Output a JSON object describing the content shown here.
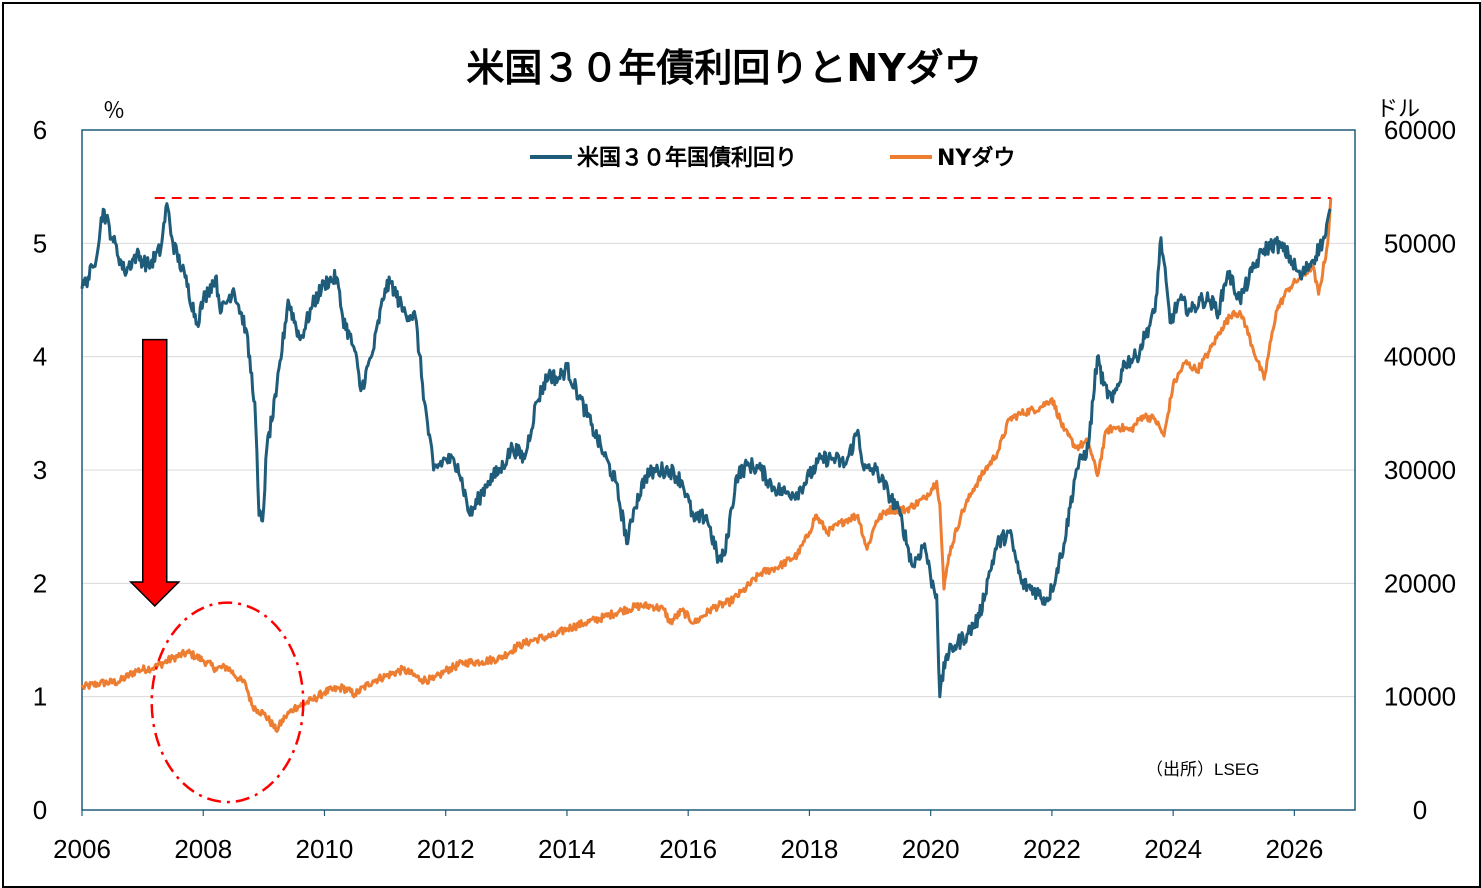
{
  "chart_data": {
    "type": "line",
    "title": "米国３０年債利回りとNYダウ",
    "y_left_unit": "％",
    "y_right_unit": "ドル",
    "source": "（出所）LSEG",
    "xlim": [
      2006,
      2027
    ],
    "x_ticks": [
      "2006",
      "2008",
      "2010",
      "2012",
      "2014",
      "2016",
      "2018",
      "2020",
      "2022",
      "2024",
      "2026"
    ],
    "y_left_lim": [
      0,
      6
    ],
    "y_left_ticks": [
      "0",
      "1",
      "2",
      "3",
      "4",
      "5",
      "6"
    ],
    "y_right_lim": [
      0,
      60000
    ],
    "y_right_ticks": [
      "0",
      "10000",
      "20000",
      "30000",
      "40000",
      "50000",
      "60000"
    ],
    "grid": true,
    "legend_position": "top-center",
    "colors": {
      "yield": "#1f5c7a",
      "dow": "#ed7d31",
      "reference_line": "#ff0000",
      "arrow": "#ff0000",
      "highlight_ellipse": "#ff0000"
    },
    "series": [
      {
        "name": "米国３０年国債利回り",
        "axis": "left",
        "x": [
          2006.0,
          2006.2,
          2006.35,
          2006.5,
          2006.7,
          2006.9,
          2007.1,
          2007.3,
          2007.4,
          2007.5,
          2007.7,
          2007.9,
          2008.0,
          2008.2,
          2008.3,
          2008.5,
          2008.7,
          2008.85,
          2008.92,
          2008.98,
          2009.05,
          2009.2,
          2009.4,
          2009.6,
          2009.8,
          2010.0,
          2010.2,
          2010.3,
          2010.5,
          2010.6,
          2010.8,
          2011.0,
          2011.1,
          2011.3,
          2011.5,
          2011.65,
          2011.8,
          2012.0,
          2012.2,
          2012.4,
          2012.55,
          2012.7,
          2012.9,
          2013.1,
          2013.3,
          2013.5,
          2013.7,
          2013.85,
          2014.0,
          2014.2,
          2014.4,
          2014.6,
          2014.8,
          2015.0,
          2015.1,
          2015.3,
          2015.5,
          2015.7,
          2015.9,
          2016.1,
          2016.3,
          2016.5,
          2016.6,
          2016.8,
          2017.0,
          2017.2,
          2017.4,
          2017.6,
          2017.8,
          2018.0,
          2018.2,
          2018.4,
          2018.6,
          2018.8,
          2018.9,
          2019.1,
          2019.3,
          2019.5,
          2019.7,
          2019.9,
          2020.0,
          2020.1,
          2020.15,
          2020.25,
          2020.4,
          2020.6,
          2020.8,
          2020.95,
          2021.1,
          2021.3,
          2021.5,
          2021.7,
          2021.9,
          2022.0,
          2022.2,
          2022.4,
          2022.6,
          2022.75,
          2022.85,
          2023.0,
          2023.2,
          2023.4,
          2023.55,
          2023.7,
          2023.8,
          2023.95,
          2024.1,
          2024.3,
          2024.45,
          2024.6,
          2024.75,
          2024.9,
          2025.1,
          2025.3,
          2025.5,
          2025.7,
          2025.9,
          2026.1,
          2026.3,
          2026.5,
          2026.6
        ],
        "values": [
          4.6,
          4.8,
          5.3,
          5.05,
          4.75,
          4.9,
          4.8,
          4.95,
          5.35,
          5.0,
          4.7,
          4.3,
          4.5,
          4.7,
          4.4,
          4.6,
          4.25,
          3.6,
          2.6,
          2.55,
          3.2,
          3.65,
          4.5,
          4.15,
          4.45,
          4.65,
          4.7,
          4.35,
          4.05,
          3.7,
          4.05,
          4.6,
          4.65,
          4.4,
          4.35,
          3.6,
          3.0,
          3.1,
          3.05,
          2.6,
          2.75,
          2.9,
          3.0,
          3.2,
          3.1,
          3.6,
          3.85,
          3.8,
          3.9,
          3.65,
          3.4,
          3.15,
          2.9,
          2.35,
          2.65,
          2.95,
          3.0,
          3.0,
          2.9,
          2.55,
          2.6,
          2.2,
          2.25,
          2.95,
          3.05,
          3.0,
          2.85,
          2.8,
          2.8,
          2.95,
          3.1,
          3.1,
          3.05,
          3.35,
          3.0,
          3.0,
          2.8,
          2.6,
          2.15,
          2.35,
          2.05,
          1.9,
          1.0,
          1.35,
          1.45,
          1.55,
          1.7,
          2.05,
          2.35,
          2.45,
          2.0,
          1.95,
          1.85,
          1.95,
          2.35,
          3.0,
          3.2,
          4.0,
          3.75,
          3.6,
          3.95,
          4.0,
          4.2,
          4.4,
          5.05,
          4.3,
          4.5,
          4.4,
          4.5,
          4.5,
          4.4,
          4.75,
          4.5,
          4.75,
          4.95,
          5.0,
          4.9,
          4.7,
          4.85,
          5.05,
          5.3
        ]
      },
      {
        "name": "NYダウ",
        "axis": "right",
        "x": [
          2006.0,
          2006.3,
          2006.6,
          2006.9,
          2007.2,
          2007.5,
          2007.75,
          2008.0,
          2008.2,
          2008.4,
          2008.6,
          2008.7,
          2008.8,
          2008.9,
          2009.0,
          2009.15,
          2009.2,
          2009.35,
          2009.5,
          2009.8,
          2010.0,
          2010.3,
          2010.5,
          2010.8,
          2011.0,
          2011.3,
          2011.6,
          2011.8,
          2012.0,
          2012.3,
          2012.6,
          2012.9,
          2013.2,
          2013.5,
          2013.8,
          2014.0,
          2014.3,
          2014.6,
          2014.9,
          2015.2,
          2015.4,
          2015.6,
          2015.7,
          2015.9,
          2016.1,
          2016.4,
          2016.7,
          2016.9,
          2017.2,
          2017.5,
          2017.8,
          2018.0,
          2018.1,
          2018.3,
          2018.6,
          2018.8,
          2018.95,
          2019.1,
          2019.3,
          2019.6,
          2019.9,
          2020.1,
          2020.15,
          2020.22,
          2020.3,
          2020.5,
          2020.7,
          2020.9,
          2021.1,
          2021.3,
          2021.5,
          2021.8,
          2022.0,
          2022.2,
          2022.4,
          2022.6,
          2022.75,
          2022.9,
          2023.1,
          2023.3,
          2023.5,
          2023.7,
          2023.85,
          2024.0,
          2024.2,
          2024.4,
          2024.6,
          2024.8,
          2025.0,
          2025.15,
          2025.3,
          2025.5,
          2025.7,
          2025.9,
          2026.1,
          2026.3,
          2026.4,
          2026.55,
          2026.6
        ],
        "values": [
          10800,
          11200,
          11300,
          12300,
          12600,
          13400,
          13900,
          13200,
          12500,
          12600,
          11500,
          11100,
          9300,
          8800,
          8500,
          7500,
          7000,
          8200,
          9000,
          9700,
          10400,
          10800,
          10200,
          11400,
          11800,
          12400,
          11500,
          11500,
          12300,
          13000,
          13100,
          13400,
          14500,
          15100,
          15400,
          16000,
          16500,
          17000,
          17600,
          18000,
          18000,
          17700,
          16500,
          17600,
          16500,
          17800,
          18400,
          19300,
          20900,
          21500,
          22500,
          24500,
          26000,
          24500,
          25600,
          26000,
          23000,
          25500,
          26500,
          26500,
          27500,
          29000,
          27000,
          19500,
          22500,
          26000,
          28300,
          30000,
          31500,
          34500,
          35000,
          35500,
          36300,
          33500,
          32000,
          32500,
          29500,
          33500,
          33800,
          33500,
          34800,
          34500,
          33000,
          37500,
          39500,
          38800,
          40500,
          42500,
          44000,
          43500,
          41000,
          38000,
          44000,
          46000,
          47000,
          48000,
          45500,
          50000,
          54000
        ]
      }
    ],
    "annotations": {
      "reference_line_value_left": 5.4,
      "reference_line_x": [
        2007.2,
        2026.6
      ],
      "arrow_x": 2007.2,
      "arrow_from_left": 4.15,
      "arrow_to_left": 1.8,
      "highlight_ellipse_center_x": 2008.4,
      "highlight_ellipse_center_left": 0.95,
      "highlight_ellipse_rx_years": 1.25,
      "highlight_ellipse_ry_left": 0.88
    }
  }
}
